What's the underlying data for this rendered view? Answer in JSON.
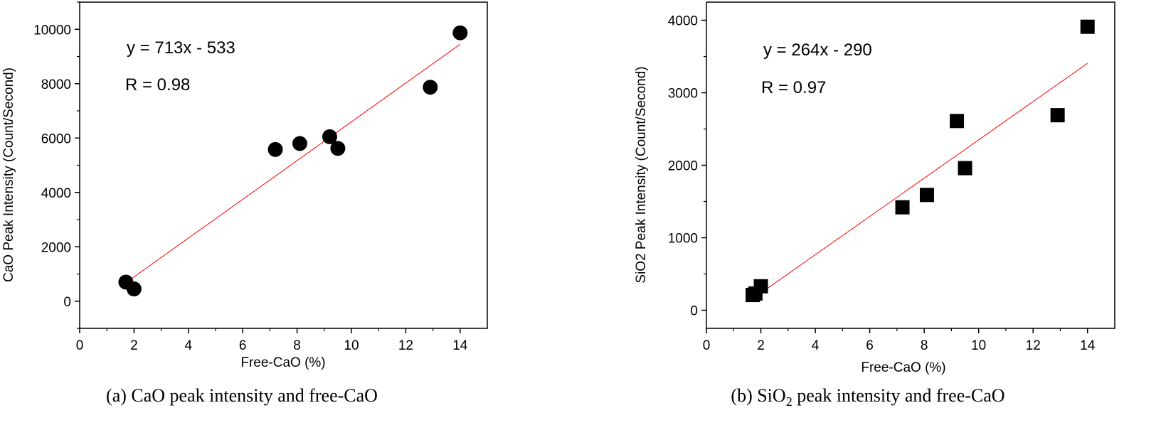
{
  "chart_data": [
    {
      "type": "scatter",
      "xlabel": "Free-CaO (%)",
      "ylabel": "CaO Peak Intensity (Count/Second)",
      "xlim": [
        0,
        15
      ],
      "ylim": [
        -1000,
        11000
      ],
      "xticks": [
        0,
        2,
        4,
        6,
        8,
        10,
        12,
        14
      ],
      "yticks": [
        0,
        2000,
        4000,
        6000,
        8000,
        10000
      ],
      "marker": "circle",
      "marker_color": "#000000",
      "fit_line_color": "#ff0000",
      "fit_line": {
        "x": [
          1.7,
          14.0
        ],
        "y": [
          679,
          9449
        ]
      },
      "equation": "y = 713x - 533",
      "r_text": "R = 0.98",
      "caption": "(a) CaO peak intensity and free-CaO",
      "points": [
        {
          "x": 1.7,
          "y": 700
        },
        {
          "x": 2.0,
          "y": 450
        },
        {
          "x": 7.2,
          "y": 5580
        },
        {
          "x": 8.1,
          "y": 5800
        },
        {
          "x": 9.2,
          "y": 6050
        },
        {
          "x": 9.5,
          "y": 5620
        },
        {
          "x": 12.9,
          "y": 7870
        },
        {
          "x": 14.0,
          "y": 9870
        }
      ]
    },
    {
      "type": "scatter",
      "xlabel": "Free-CaO (%)",
      "ylabel": "SiO2 Peak Intensity (Count/Second)",
      "xlim": [
        0,
        15
      ],
      "ylim": [
        -250,
        4250
      ],
      "xticks": [
        0,
        2,
        4,
        6,
        8,
        10,
        12,
        14
      ],
      "yticks": [
        0,
        1000,
        2000,
        3000,
        4000
      ],
      "marker": "square",
      "marker_color": "#000000",
      "fit_line_color": "#ff0000",
      "fit_line": {
        "x": [
          1.7,
          14.0
        ],
        "y": [
          159,
          3406
        ]
      },
      "equation": "y = 264x - 290",
      "r_text": "R = 0.97",
      "caption_main": "(b) SiO",
      "caption_sub": "2",
      "caption_rest": " peak intensity and free-CaO",
      "points": [
        {
          "x": 1.7,
          "y": 210
        },
        {
          "x": 1.8,
          "y": 230
        },
        {
          "x": 2.0,
          "y": 330
        },
        {
          "x": 7.2,
          "y": 1420
        },
        {
          "x": 8.1,
          "y": 1590
        },
        {
          "x": 9.2,
          "y": 2610
        },
        {
          "x": 9.5,
          "y": 1960
        },
        {
          "x": 12.9,
          "y": 2690
        },
        {
          "x": 14.0,
          "y": 3910
        }
      ]
    }
  ]
}
